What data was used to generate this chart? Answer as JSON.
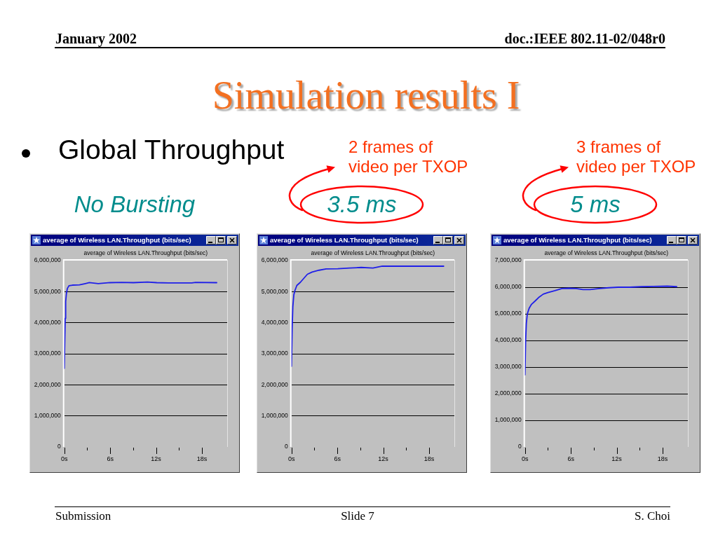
{
  "chart_data": [
    {
      "type": "other",
      "title": "Simulation results I",
      "annotations": [
        "January 2002",
        "doc.:IEEE 802.11-02/048r0",
        "Global Throughput",
        "Submission",
        "Slide 7",
        "S. Choi"
      ]
    },
    {
      "type": "line",
      "title": "average of Wireless LAN.Throughput (bits/sec)",
      "subtitle": "average of Wireless LAN.Throughput (bits/sec)",
      "annotations": [
        "No Bursting"
      ],
      "x": [
        0,
        0.06,
        0.12,
        0.18,
        0.28,
        0.4,
        0.61,
        1.07,
        1.99,
        2.75,
        3.28,
        4.44,
        5.97,
        7.5,
        9.03,
        10.87,
        12.09,
        13.62,
        16.68,
        17.17,
        19.93
      ],
      "values": [
        2530000,
        3380000,
        4140000,
        4680000,
        4940000,
        5100000,
        5190000,
        5210000,
        5220000,
        5260000,
        5290000,
        5260000,
        5290000,
        5300000,
        5290000,
        5310000,
        5290000,
        5280000,
        5280000,
        5300000,
        5290000
      ],
      "color": "#1f1fe8",
      "xlim": [
        0,
        21.3
      ],
      "xticks": [
        {
          "value": 0,
          "label": "0s"
        },
        {
          "value": 3,
          "label": null
        },
        {
          "value": 6,
          "label": "6s"
        },
        {
          "value": 9,
          "label": null
        },
        {
          "value": 12,
          "label": "12s"
        },
        {
          "value": 15,
          "label": null
        },
        {
          "value": 18,
          "label": "18s"
        }
      ],
      "ylim": [
        0,
        6000000
      ],
      "yticks": [
        {
          "value": 0,
          "label": "0"
        },
        {
          "value": 1000000,
          "label": "1,000,000"
        },
        {
          "value": 2000000,
          "label": "2,000,000"
        },
        {
          "value": 3000000,
          "label": "3,000,000"
        },
        {
          "value": 4000000,
          "label": "4,000,000"
        },
        {
          "value": 5000000,
          "label": "5,000,000"
        },
        {
          "value": 6000000,
          "label": "6,000,000"
        }
      ],
      "grid": "y",
      "marker": "none"
    },
    {
      "type": "line",
      "title": "average of Wireless LAN.Throughput (bits/sec)",
      "subtitle": "average of Wireless LAN.Throughput (bits/sec)",
      "annotations": [
        "3.5 ms",
        "2 frames of\nvideo per TXOP"
      ],
      "x": [
        0,
        0.09,
        0.18,
        0.31,
        0.46,
        0.7,
        1.16,
        1.62,
        2.08,
        2.69,
        3.61,
        4.53,
        6.06,
        7.59,
        9.12,
        10.65,
        11.88,
        13.7,
        16.8,
        19.9
      ],
      "values": [
        2600000,
        3830000,
        4520000,
        4900000,
        5040000,
        5200000,
        5300000,
        5430000,
        5560000,
        5630000,
        5690000,
        5730000,
        5740000,
        5760000,
        5780000,
        5760000,
        5820000,
        5820000,
        5820000,
        5820000
      ],
      "color": "#1f1fe8",
      "xlim": [
        0,
        21.3
      ],
      "xticks": [
        {
          "value": 0,
          "label": "0s"
        },
        {
          "value": 3,
          "label": null
        },
        {
          "value": 6,
          "label": "6s"
        },
        {
          "value": 9,
          "label": null
        },
        {
          "value": 12,
          "label": "12s"
        },
        {
          "value": 15,
          "label": null
        },
        {
          "value": 18,
          "label": "18s"
        }
      ],
      "ylim": [
        0,
        6000000
      ],
      "yticks": [
        {
          "value": 0,
          "label": "0"
        },
        {
          "value": 1000000,
          "label": "1,000,000"
        },
        {
          "value": 2000000,
          "label": "2,000,000"
        },
        {
          "value": 3000000,
          "label": "3,000,000"
        },
        {
          "value": 4000000,
          "label": "4,000,000"
        },
        {
          "value": 5000000,
          "label": "5,000,000"
        },
        {
          "value": 6000000,
          "label": "6,000,000"
        }
      ],
      "grid": "y",
      "marker": "none"
    },
    {
      "type": "line",
      "title": "average of Wireless LAN.Throughput (bits/sec)",
      "subtitle": "average of Wireless LAN.Throughput (bits/sec)",
      "annotations": [
        "5 ms",
        "3 frames of\nvideo per TXOP"
      ],
      "x": [
        0,
        0.09,
        0.18,
        0.31,
        0.55,
        0.86,
        1.32,
        1.78,
        2.39,
        3.0,
        3.92,
        4.84,
        5.75,
        6.67,
        7.59,
        8.51,
        9.73,
        10.96,
        12.18,
        13.71,
        15.24,
        16.77,
        18.61,
        19.84
      ],
      "values": [
        2710000,
        4020000,
        4640000,
        5000000,
        5210000,
        5360000,
        5480000,
        5610000,
        5740000,
        5800000,
        5870000,
        5950000,
        5960000,
        5950000,
        5910000,
        5910000,
        5950000,
        5980000,
        6000000,
        6000000,
        6020000,
        6030000,
        6040000,
        6020000
      ],
      "color": "#1f1fe8",
      "xlim": [
        0,
        21.3
      ],
      "xticks": [
        {
          "value": 0,
          "label": "0s"
        },
        {
          "value": 3,
          "label": null
        },
        {
          "value": 6,
          "label": "6s"
        },
        {
          "value": 9,
          "label": null
        },
        {
          "value": 12,
          "label": "12s"
        },
        {
          "value": 15,
          "label": null
        },
        {
          "value": 18,
          "label": "18s"
        }
      ],
      "ylim": [
        0,
        7000000
      ],
      "yticks": [
        {
          "value": 0,
          "label": "0"
        },
        {
          "value": 1000000,
          "label": "1,000,000"
        },
        {
          "value": 2000000,
          "label": "2,000,000"
        },
        {
          "value": 3000000,
          "label": "3,000,000"
        },
        {
          "value": 4000000,
          "label": "4,000,000"
        },
        {
          "value": 5000000,
          "label": "5,000,000"
        },
        {
          "value": 6000000,
          "label": "6,000,000"
        },
        {
          "value": 7000000,
          "label": "7,000,000"
        }
      ],
      "grid": "y",
      "marker": "none"
    }
  ]
}
